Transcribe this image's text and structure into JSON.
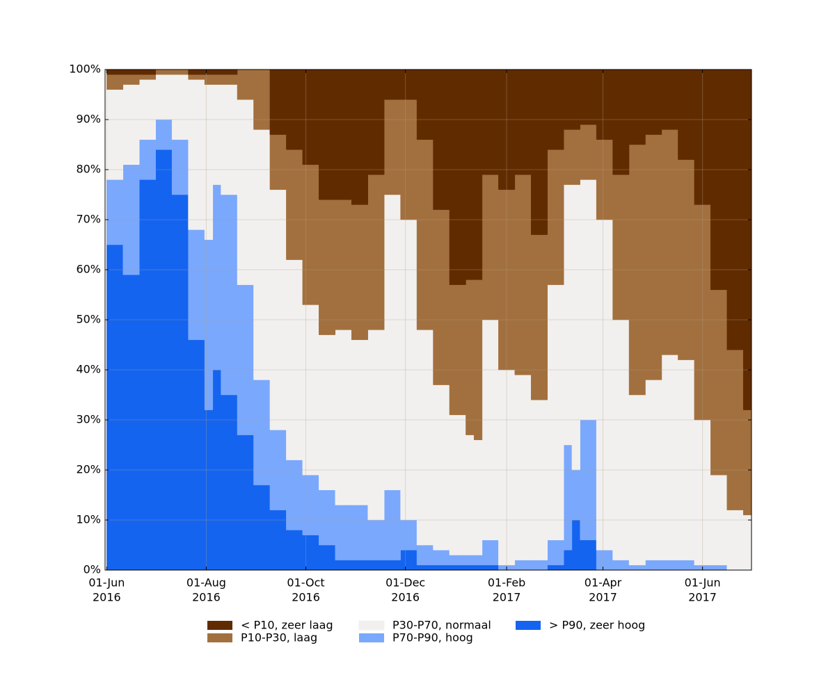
{
  "chart_data": {
    "type": "stacked_area_step",
    "x": [
      "2016-06-01",
      "2016-06-11",
      "2016-06-21",
      "2016-07-01",
      "2016-07-11",
      "2016-07-21",
      "2016-07-31",
      "2016-08-05",
      "2016-08-10",
      "2016-08-20",
      "2016-08-30",
      "2016-09-09",
      "2016-09-19",
      "2016-09-29",
      "2016-10-09",
      "2016-10-19",
      "2016-10-29",
      "2016-11-08",
      "2016-11-18",
      "2016-11-28",
      "2016-12-08",
      "2016-12-18",
      "2016-12-28",
      "2017-01-07",
      "2017-01-12",
      "2017-01-17",
      "2017-01-27",
      "2017-02-06",
      "2017-02-16",
      "2017-02-26",
      "2017-03-08",
      "2017-03-13",
      "2017-03-18",
      "2017-03-28",
      "2017-04-07",
      "2017-04-17",
      "2017-04-27",
      "2017-05-07",
      "2017-05-17",
      "2017-05-27",
      "2017-06-06",
      "2017-06-16",
      "2017-06-26",
      "2017-07-01"
    ],
    "series": [
      {
        "name": "< P10, zeer laag",
        "color": "#612b00",
        "values": [
          1,
          1,
          1,
          0,
          0,
          1,
          1,
          1,
          1,
          0,
          0,
          13,
          16,
          19,
          26,
          26,
          27,
          21,
          6,
          6,
          14,
          28,
          43,
          42,
          42,
          21,
          24,
          21,
          33,
          16,
          12,
          12,
          11,
          14,
          21,
          15,
          13,
          12,
          18,
          27,
          44,
          56,
          68,
          67
        ]
      },
      {
        "name": "P10-P30, laag",
        "color": "#a2703e",
        "values": [
          3,
          2,
          1,
          1,
          1,
          1,
          2,
          2,
          2,
          6,
          12,
          11,
          22,
          28,
          27,
          26,
          27,
          31,
          19,
          24,
          38,
          35,
          26,
          31,
          32,
          29,
          36,
          40,
          33,
          27,
          11,
          11,
          11,
          16,
          29,
          50,
          49,
          45,
          40,
          43,
          37,
          32,
          21,
          21
        ]
      },
      {
        "name": "P30-P70, normaal",
        "color": "#f2f0ee",
        "values": [
          18,
          16,
          12,
          9,
          13,
          30,
          31,
          20,
          22,
          37,
          50,
          48,
          40,
          34,
          31,
          35,
          33,
          38,
          59,
          60,
          43,
          33,
          28,
          24,
          23,
          44,
          39,
          37,
          32,
          51,
          52,
          57,
          48,
          66,
          48,
          34,
          36,
          41,
          40,
          29,
          18,
          12,
          11,
          12
        ]
      },
      {
        "name": "P70-P90, hoog",
        "color": "#7aa8fc",
        "values": [
          13,
          22,
          8,
          6,
          11,
          22,
          34,
          37,
          40,
          30,
          21,
          16,
          14,
          12,
          11,
          11,
          11,
          8,
          14,
          6,
          4,
          3,
          2,
          2,
          2,
          5,
          1,
          2,
          2,
          5,
          21,
          10,
          24,
          4,
          2,
          1,
          2,
          2,
          2,
          1,
          1,
          0,
          0,
          0
        ]
      },
      {
        "name": "> P90, zeer hoog",
        "color": "#1464f0",
        "values": [
          65,
          59,
          78,
          84,
          75,
          46,
          32,
          40,
          35,
          27,
          17,
          12,
          8,
          7,
          5,
          2,
          2,
          2,
          2,
          4,
          1,
          1,
          1,
          1,
          1,
          1,
          0,
          0,
          0,
          1,
          4,
          10,
          6,
          0,
          0,
          0,
          0,
          0,
          0,
          0,
          0,
          0,
          0,
          0
        ]
      }
    ],
    "xlim": [
      "2016-05-31",
      "2017-07-01"
    ],
    "xticks": [
      {
        "value": "2016-06-01",
        "label": [
          "01-Jun",
          "2016"
        ]
      },
      {
        "value": "2016-08-01",
        "label": [
          "01-Aug",
          "2016"
        ]
      },
      {
        "value": "2016-10-01",
        "label": [
          "01-Oct",
          "2016"
        ]
      },
      {
        "value": "2016-12-01",
        "label": [
          "01-Dec",
          "2016"
        ]
      },
      {
        "value": "2017-02-01",
        "label": [
          "01-Feb",
          "2017"
        ]
      },
      {
        "value": "2017-04-01",
        "label": [
          "01-Apr",
          "2017"
        ]
      },
      {
        "value": "2017-06-01",
        "label": [
          "01-Jun",
          "2017"
        ]
      }
    ],
    "ylim": [
      0,
      100
    ],
    "yticks": [
      {
        "value": 0,
        "label": "0%"
      },
      {
        "value": 10,
        "label": "10%"
      },
      {
        "value": 20,
        "label": "20%"
      },
      {
        "value": 30,
        "label": "30%"
      },
      {
        "value": 40,
        "label": "40%"
      },
      {
        "value": 50,
        "label": "50%"
      },
      {
        "value": 60,
        "label": "60%"
      },
      {
        "value": 70,
        "label": "70%"
      },
      {
        "value": 80,
        "label": "80%"
      },
      {
        "value": 90,
        "label": "90%"
      },
      {
        "value": 100,
        "label": "100%"
      }
    ],
    "grid": true,
    "legend": "bottom"
  }
}
